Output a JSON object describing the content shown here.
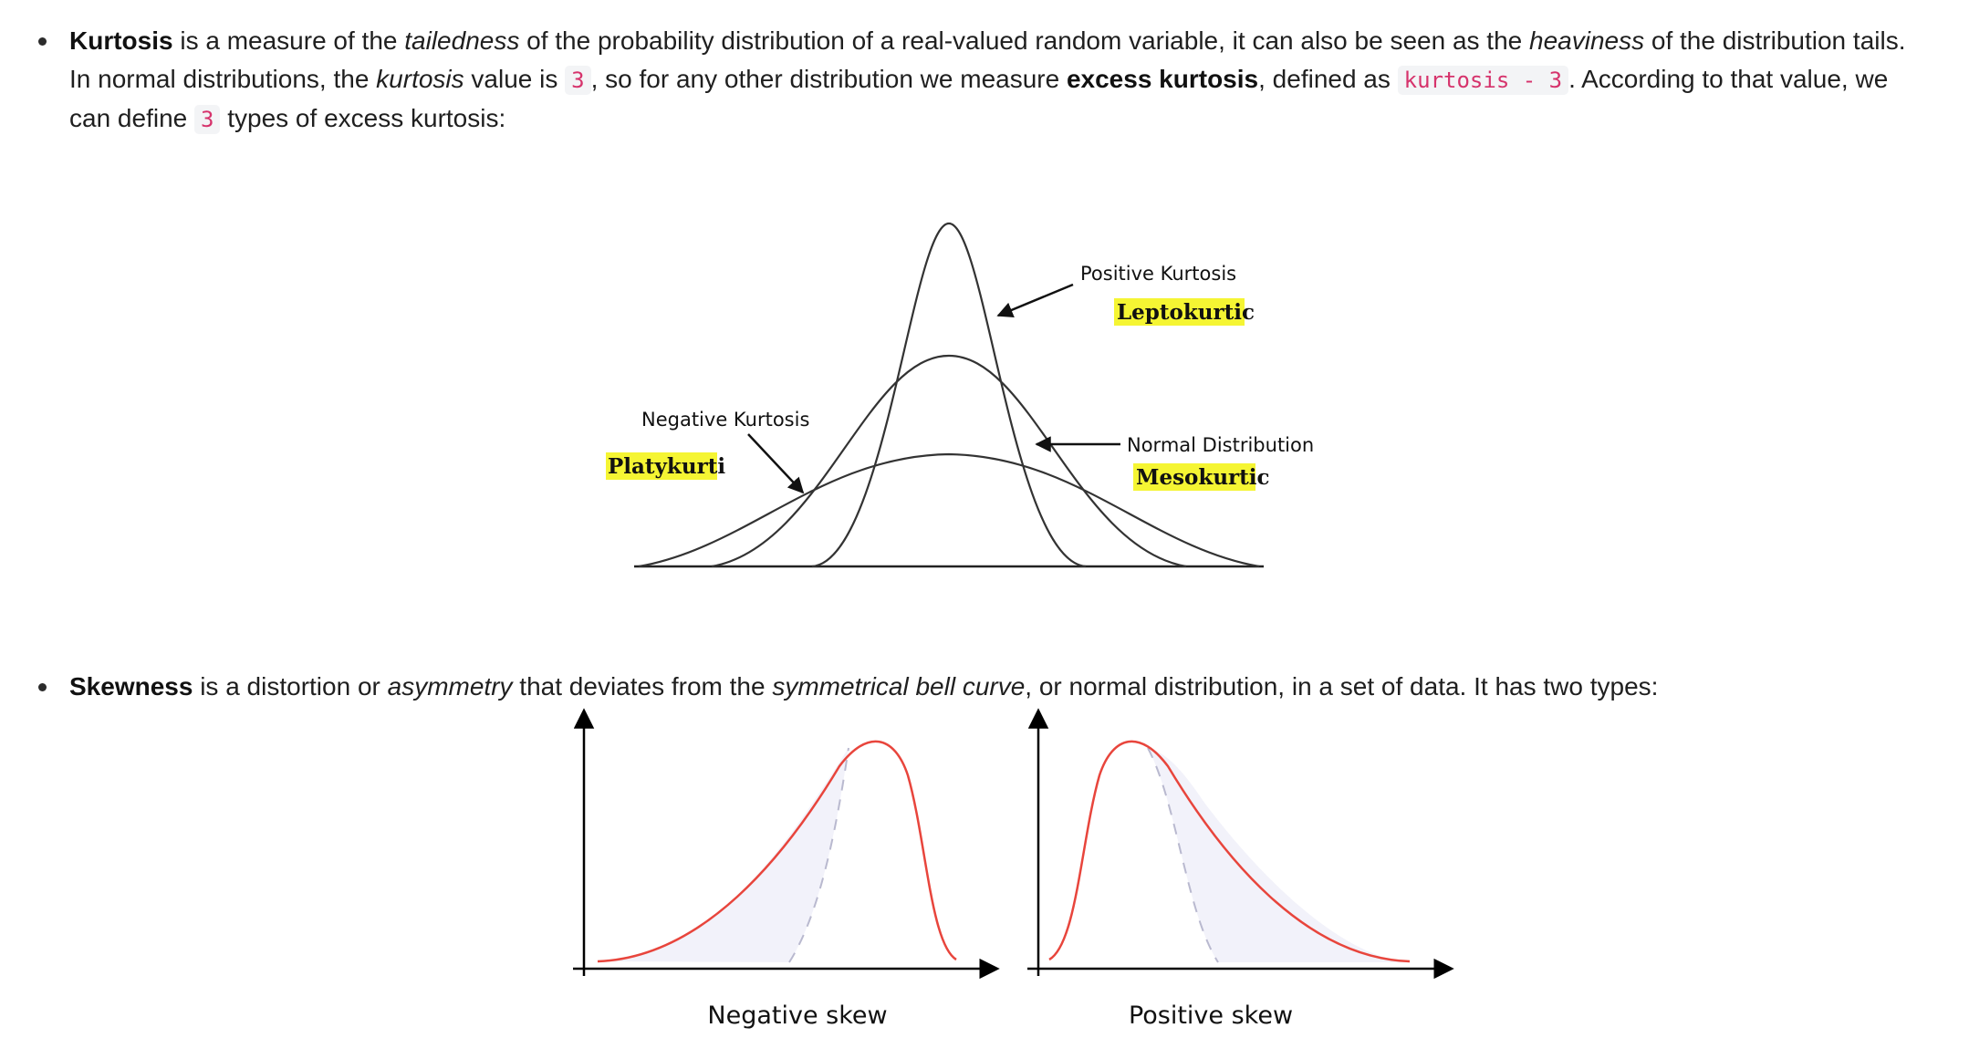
{
  "kurtosis": {
    "term": "Kurtosis",
    "t1": " is a measure of the ",
    "em1": "tailedness",
    "t2": " of the probability distribution of a real-valued random variable, it can also be seen as the ",
    "em2": "heaviness",
    "t3": " of the distribution tails. In normal distributions, the ",
    "em3": "kurtosis",
    "t4": " value is ",
    "code1": "3",
    "t5": ", so for any other distribution we measure ",
    "strong": "excess kurtosis",
    "t6": ", defined as ",
    "code2": "kurtosis - 3",
    "t7": ". According to that value, we can define ",
    "code3": "3",
    "t8": " types of excess kurtosis:",
    "figure": {
      "positive_label": "Positive Kurtosis",
      "positive_name": "Leptokurtic",
      "negative_label": "Negative Kurtosis",
      "negative_name": "Platykurti",
      "normal_label": "Normal Distribution",
      "normal_name": "Mesokurtic",
      "highlight_color": "#f5f533"
    }
  },
  "skewness": {
    "term": "Skewness",
    "t1": " is a distortion or ",
    "em1": "asymmetry",
    "t2": " that deviates from the ",
    "em2": "symmetrical bell curve",
    "t3": ", or normal distribution, in a set of data. It has two types:",
    "figure": {
      "negative_caption": "Negative skew",
      "positive_caption": "Positive skew",
      "curve_color": "#e8453c"
    }
  }
}
